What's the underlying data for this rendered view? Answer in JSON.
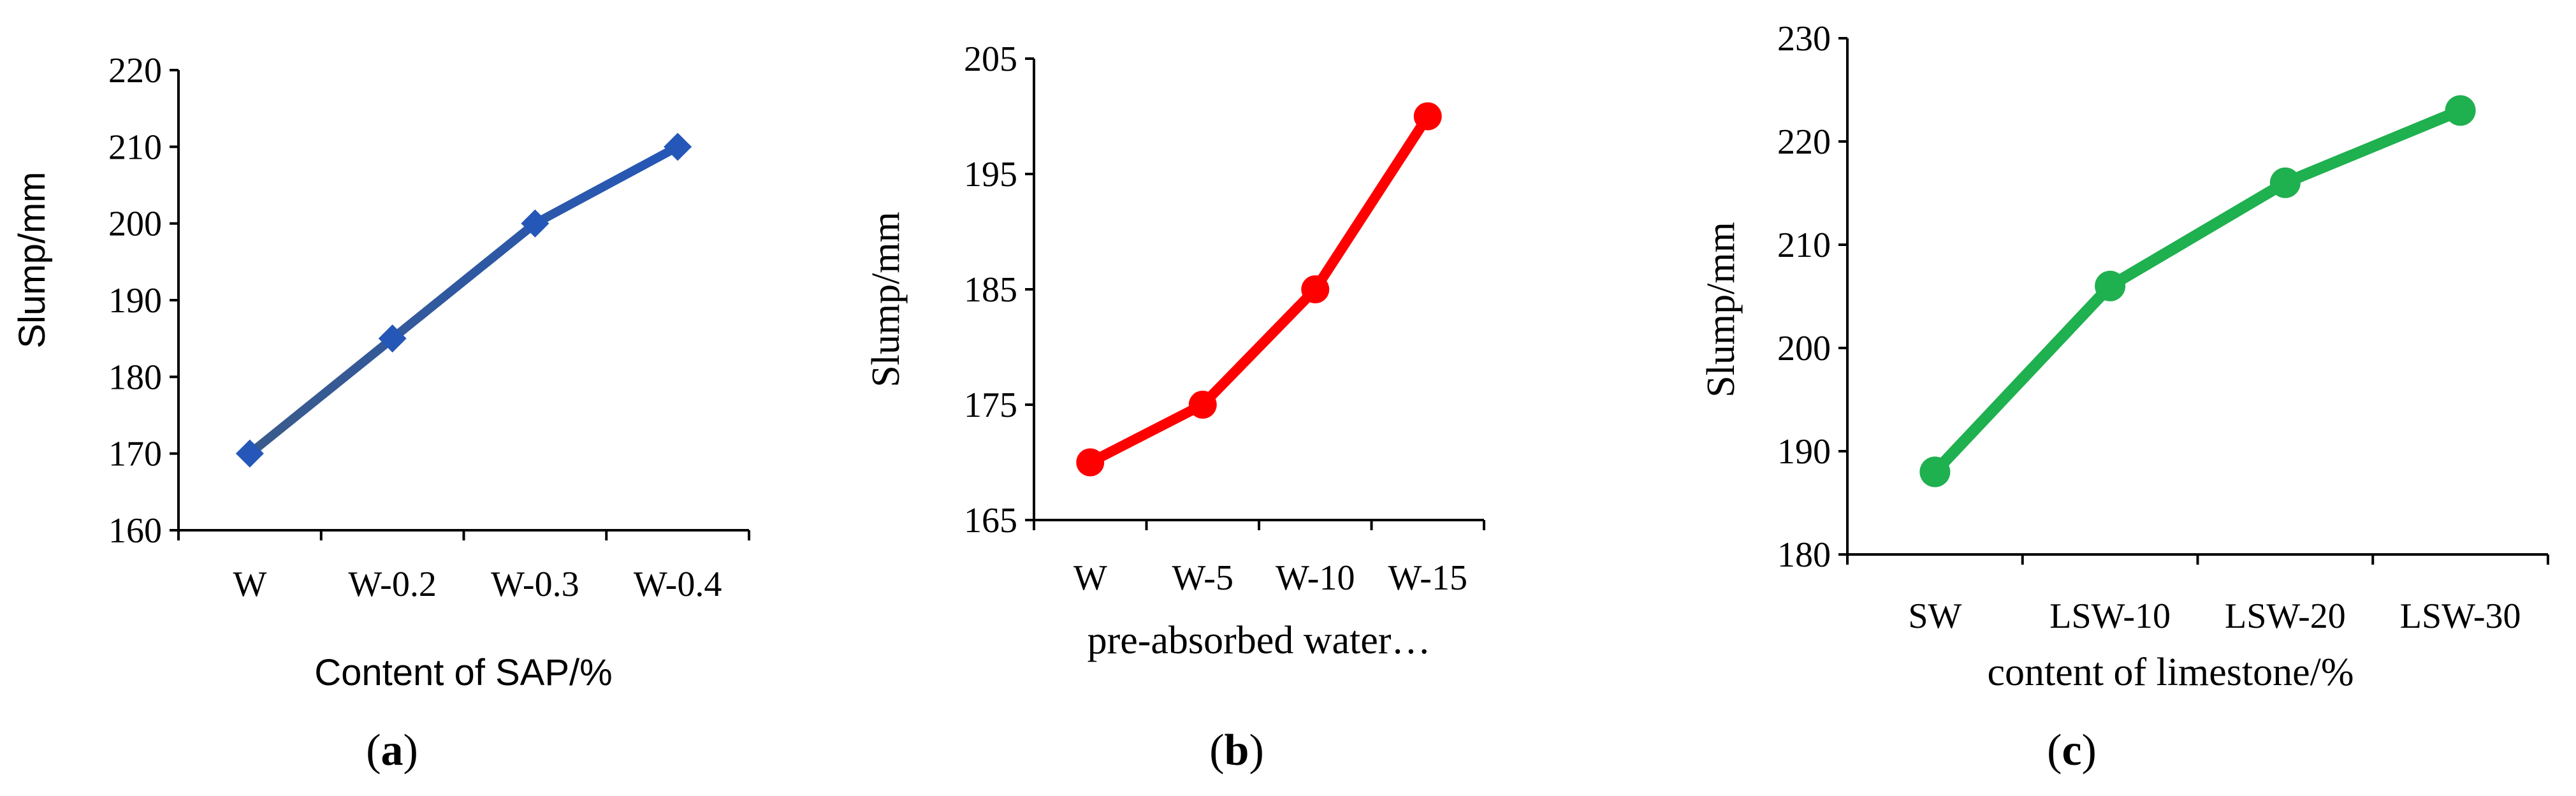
{
  "chart_data": [
    {
      "type": "line",
      "panel_label": "a",
      "categories": [
        "W",
        "W-0.2",
        "W-0.3",
        "W-0.4"
      ],
      "values": [
        170,
        185,
        200,
        210
      ],
      "yticks": [
        160,
        170,
        180,
        190,
        200,
        210,
        220
      ],
      "ylim": [
        160,
        220
      ],
      "ylabel": "Slump/mm",
      "xlabel": "Content of SAP/%",
      "marker": "diamond",
      "color": "#2557b8",
      "color_start": "#3a5a8a"
    },
    {
      "type": "line",
      "panel_label": "b",
      "categories": [
        "W",
        "W-5",
        "W-10",
        "W-15"
      ],
      "values": [
        170,
        175,
        185,
        200
      ],
      "yticks": [
        165,
        175,
        185,
        195,
        205
      ],
      "ylim": [
        165,
        205
      ],
      "ylabel": "Slump/mm",
      "xlabel": "pre-absorbed water…",
      "marker": "circle",
      "color": "#ff0000"
    },
    {
      "type": "line",
      "panel_label": "c",
      "categories": [
        "SW",
        "LSW-10",
        "LSW-20",
        "LSW-30"
      ],
      "values": [
        188,
        206,
        216,
        223
      ],
      "yticks": [
        180,
        190,
        200,
        210,
        220,
        230
      ],
      "ylim": [
        180,
        230
      ],
      "ylabel": "Slump/mm",
      "xlabel": "content of limestone/%",
      "marker": "circle",
      "color": "#1fb04f"
    }
  ]
}
